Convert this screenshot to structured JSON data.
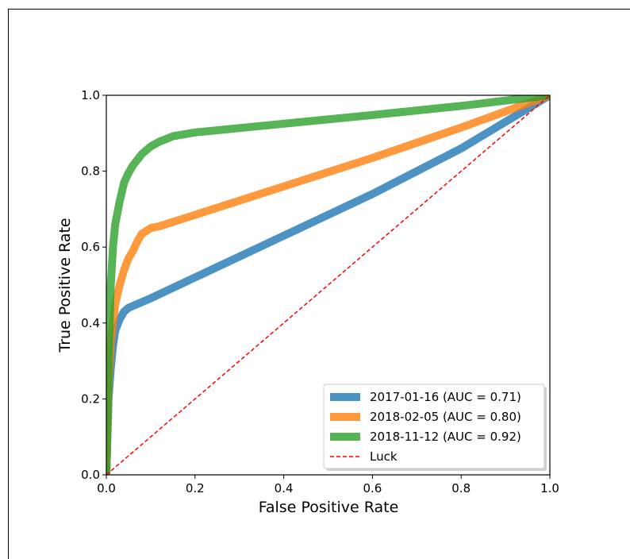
{
  "chart_data": {
    "type": "line",
    "xlabel": "False Positive Rate",
    "ylabel": "True Positive Rate",
    "xlim": [
      0.0,
      1.0
    ],
    "ylim": [
      0.0,
      1.0
    ],
    "xticks": [
      "0.0",
      "0.2",
      "0.4",
      "0.6",
      "0.8",
      "1.0"
    ],
    "yticks": [
      "0.0",
      "0.2",
      "0.4",
      "0.6",
      "0.8",
      "1.0"
    ],
    "grid": false,
    "legend_position": "bottom-right",
    "series": [
      {
        "name": "2017-01-16 (AUC = 0.71)",
        "color": "#1f77b4",
        "x": [
          0.0,
          0.005,
          0.01,
          0.015,
          0.02,
          0.03,
          0.04,
          0.05,
          0.07,
          0.1,
          0.2,
          0.4,
          0.6,
          0.8,
          1.0
        ],
        "y": [
          0.0,
          0.2,
          0.28,
          0.34,
          0.38,
          0.41,
          0.43,
          0.44,
          0.45,
          0.465,
          0.52,
          0.63,
          0.74,
          0.86,
          1.0
        ]
      },
      {
        "name": "2018-02-05 (AUC = 0.80)",
        "color": "#ff7f0e",
        "x": [
          0.0,
          0.005,
          0.01,
          0.02,
          0.03,
          0.04,
          0.05,
          0.06,
          0.07,
          0.08,
          0.1,
          0.12,
          0.2,
          0.4,
          0.6,
          0.8,
          1.0
        ],
        "y": [
          0.0,
          0.25,
          0.35,
          0.45,
          0.5,
          0.54,
          0.57,
          0.59,
          0.615,
          0.635,
          0.65,
          0.655,
          0.685,
          0.76,
          0.835,
          0.915,
          1.0
        ]
      },
      {
        "name": "2018-11-12 (AUC = 0.92)",
        "color": "#2ca02c",
        "x": [
          0.0,
          0.005,
          0.01,
          0.015,
          0.02,
          0.03,
          0.04,
          0.05,
          0.06,
          0.08,
          0.1,
          0.12,
          0.15,
          0.2,
          0.4,
          0.6,
          0.8,
          1.0
        ],
        "y": [
          0.0,
          0.3,
          0.5,
          0.6,
          0.66,
          0.72,
          0.77,
          0.795,
          0.815,
          0.845,
          0.865,
          0.878,
          0.892,
          0.902,
          0.925,
          0.948,
          0.972,
          1.0
        ]
      }
    ],
    "reference_line": {
      "name": "Luck",
      "color": "#ff0000",
      "style": "dashed",
      "x": [
        0.0,
        1.0
      ],
      "y": [
        0.0,
        1.0
      ]
    }
  }
}
